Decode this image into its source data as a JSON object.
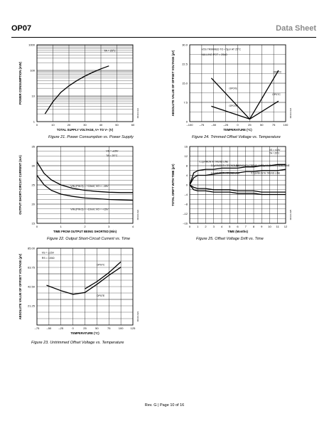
{
  "header": {
    "left": "OP07",
    "right": "Data Sheet"
  },
  "footer": "Rev. G | Page 10 of 16",
  "colors": {
    "ink": "#000000",
    "header_right": "#8a8a8a"
  },
  "figures": [
    {
      "caption": "Figure 21. Power Consumption vs. Power Supply",
      "fig_id": "00316-021",
      "chart_data": {
        "type": "line",
        "scale_y": "log",
        "xlabel": "TOTAL SUPPLY VOLTAGE, V+ TO V– (V)",
        "ylabel": "POWER CONSUMPTION (mW)",
        "xlim": [
          0,
          60
        ],
        "ylim": [
          1,
          1000
        ],
        "x_ticks": [
          "0",
          "10",
          "20",
          "30",
          "40",
          "50",
          "60"
        ],
        "y_ticks": [
          "1",
          "10",
          "100",
          "1000"
        ],
        "annotations": [
          "TA = 25°C"
        ],
        "series": [
          {
            "x": [
              5,
              10,
              15,
              20,
              25,
              30,
              35,
              40,
              45
            ],
            "y": [
              2,
              6,
              14,
              25,
              40,
              60,
              85,
              115,
              150
            ]
          }
        ]
      }
    },
    {
      "caption": "Figure 22. Output Short-Circuit Current vs. Time",
      "fig_id": "00316-022",
      "chart_data": {
        "type": "line",
        "xlabel": "TIME FROM OUTPUT BEING SHORTED (Min)",
        "ylabel": "OUTPUT SHORT-CIRCUIT CURRENT (mA)",
        "xlim": [
          0,
          4
        ],
        "ylim": [
          15,
          35
        ],
        "x_ticks": [
          "0",
          "1",
          "2",
          "3",
          "4"
        ],
        "y_ticks": [
          "15",
          "20",
          "25",
          "30",
          "35"
        ],
        "annotations": [
          "VS = ±15V",
          "TA = 25°C",
          "VIN (PIN 3) = +10mV, VO = –15V",
          "VIN (PIN 3) = –10mV, VO = +15V"
        ],
        "series": [
          {
            "x": [
              0,
              0.3,
              0.6,
              1,
              1.5,
              2,
              2.5,
              3,
              3.5,
              4
            ],
            "y": [
              31,
              28,
              26.3,
              25,
              24.1,
              23.6,
              23.3,
              23.1,
              23,
              23
            ]
          },
          {
            "x": [
              0,
              0.3,
              0.6,
              1,
              1.5,
              2,
              2.5,
              3,
              3.5,
              4
            ],
            "y": [
              27.5,
              25,
              23.6,
              22.6,
              22,
              21.6,
              21.4,
              21.2,
              21.1,
              21
            ]
          }
        ]
      }
    },
    {
      "caption": "Figure 23. Untrimmed Offset Voltage vs. Temperature",
      "fig_id": "00316-023",
      "chart_data": {
        "type": "line",
        "xlabel": "TEMPERATURE (°C)",
        "ylabel": "ABSOLUTE VALUE OF OFFSET VOLTAGE (µV)",
        "xlim": [
          -75,
          125
        ],
        "ylim": [
          0,
          85
        ],
        "x_ticks": [
          "–75",
          "–50",
          "–25",
          "0",
          "25",
          "50",
          "75",
          "100",
          "125"
        ],
        "y_ticks": [
          "21.25",
          "42.50",
          "63.75",
          "85.00"
        ],
        "annotations": [
          "VS = ±15V",
          "RS = 100Ω",
          "OP07C",
          "OP07E"
        ],
        "series": [
          {
            "name": "OP07C",
            "x": [
              -55,
              -25,
              0,
              25,
              50,
              75,
              100
            ],
            "y": [
              44,
              38,
              34,
              36,
              45,
              55,
              64
            ]
          },
          {
            "name": "OP07E",
            "x": [
              25,
              50,
              75,
              100
            ],
            "y": [
              40,
              48,
              58,
              70
            ]
          }
        ]
      }
    },
    {
      "caption": "Figure 24. Trimmed Offset Voltage vs. Temperature",
      "fig_id": "00316-024",
      "chart_data": {
        "type": "line",
        "xlabel": "TEMPERATURE (°C)",
        "ylabel": "ABSOLUTE VALUE OF OFFSET VOLTAGE (µV)",
        "xlim": [
          -100,
          100
        ],
        "ylim": [
          0,
          30
        ],
        "x_ticks": [
          "–100",
          "–75",
          "–50",
          "–25",
          "0",
          "25",
          "50",
          "75",
          "100"
        ],
        "y_ticks": [
          "0",
          "7.5",
          "15.0",
          "22.5",
          "30.0"
        ],
        "annotations": [
          "VOS TRIMMED TO < 5µV AT 25°C",
          "NULLING POT = 20kΩ",
          "OP07C",
          "OP07E",
          "OP07C",
          "OP07E"
        ],
        "series": [
          {
            "name": "OP07C",
            "x": [
              -55,
              25,
              85
            ],
            "y": [
              17,
              1,
              20
            ]
          },
          {
            "name": "OP07E",
            "x": [
              -55,
              25,
              85
            ],
            "y": [
              6,
              1,
              8
            ]
          }
        ]
      }
    },
    {
      "caption": "Figure 25. Offset Voltage Drift vs. Time",
      "fig_id": "00316-025",
      "chart_data": {
        "type": "line",
        "xlabel": "TIME (Months)",
        "ylabel": "TOTAL DRIFT WITH TIME (µV)",
        "xlim": [
          0,
          12
        ],
        "ylim": [
          -16,
          16
        ],
        "x_ticks": [
          "0",
          "1",
          "2",
          "3",
          "4",
          "5",
          "6",
          "7",
          "8",
          "9",
          "10",
          "11",
          "12"
        ],
        "y_ticks": [
          "–16",
          "–12",
          "–8",
          "–4",
          "0",
          "4",
          "8",
          "12",
          "16"
        ],
        "annotations": [
          "VS = ±15V",
          "TA = 25°C",
          "0.2µV/MONTH TREND LINE",
          "0.3µV/MONTH TREND LINE",
          "0.3µV/MONTH TREND LINE",
          "0.2µV/MONTH TREND LINE",
          "0.2µV/MONTH TREND LINE",
          "0.2µV/MONTH TREND LINE"
        ],
        "series": [
          {
            "x": [
              0,
              0.5,
              1,
              2,
              3,
              4,
              5,
              6,
              7,
              8,
              9,
              10,
              11,
              12
            ],
            "y": [
              0,
              5,
              6,
              6.5,
              6.5,
              7,
              7,
              7,
              7.5,
              7.5,
              8,
              8,
              8.5,
              8.5
            ]
          },
          {
            "x": [
              0,
              0.5,
              1,
              2,
              3,
              4,
              5,
              6,
              7,
              8,
              9,
              10,
              11,
              12
            ],
            "y": [
              0,
              3,
              4,
              4,
              4.5,
              5,
              5,
              5,
              5.5,
              5.5,
              6,
              6,
              6,
              6.5
            ]
          },
          {
            "x": [
              0,
              0.5,
              1,
              2,
              3,
              4,
              5,
              6,
              7,
              8,
              9,
              10,
              11,
              12
            ],
            "y": [
              0,
              -2,
              -2.5,
              -2.5,
              -3,
              -3,
              -3,
              -3.5,
              -3.5,
              -3.5,
              -4,
              -4,
              -4,
              -4
            ]
          },
          {
            "x": [
              0,
              0.5,
              1,
              2,
              3,
              4,
              5,
              6,
              7,
              8,
              9,
              10,
              11,
              12
            ],
            "y": [
              0,
              -1,
              -1.5,
              -1.5,
              -2,
              -2,
              -2,
              -2.5,
              -2.5,
              -2.5,
              -3,
              -3,
              -3,
              -3
            ]
          }
        ]
      }
    }
  ]
}
